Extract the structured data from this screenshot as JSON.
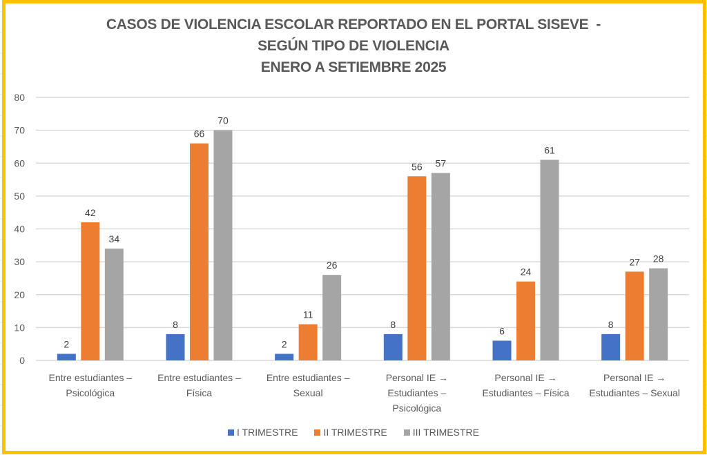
{
  "chart_data": {
    "type": "bar",
    "title": "CASOS DE VIOLENCIA ESCOLAR REPORTADO EN EL PORTAL SISEVE  -\nSEGÚN TIPO DE VIOLENCIA\nENERO A SETIEMBRE 2025",
    "title_lines": [
      "CASOS DE VIOLENCIA ESCOLAR REPORTADO EN EL PORTAL SISEVE  -",
      "SEGÚN TIPO DE VIOLENCIA",
      "ENERO A SETIEMBRE 2025"
    ],
    "xlabel": "",
    "ylabel": "",
    "ylim": [
      0,
      80
    ],
    "yticks": [
      0,
      10,
      20,
      30,
      40,
      50,
      60,
      70,
      80
    ],
    "grid": true,
    "legend_position": "bottom",
    "categories": [
      [
        "Entre estudiantes –",
        "Psicológica"
      ],
      [
        "Entre estudiantes –",
        "Física"
      ],
      [
        "Entre estudiantes –",
        "Sexual"
      ],
      [
        "Personal IE →",
        "Estudiantes –",
        "Psicológica"
      ],
      [
        "Personal IE →",
        "Estudiantes – Física"
      ],
      [
        "Personal IE →",
        "Estudiantes – Sexual"
      ]
    ],
    "series": [
      {
        "name": "I TRIMESTRE",
        "color": "#4472C4",
        "values": [
          2,
          8,
          2,
          8,
          6,
          8
        ]
      },
      {
        "name": "II TRIMESTRE",
        "color": "#ED7D31",
        "values": [
          42,
          66,
          11,
          56,
          24,
          27
        ]
      },
      {
        "name": "III TRIMESTRE",
        "color": "#A5A5A5",
        "values": [
          34,
          70,
          26,
          57,
          61,
          28
        ]
      }
    ],
    "data_labels": true
  },
  "frame_color": "#FFC000"
}
